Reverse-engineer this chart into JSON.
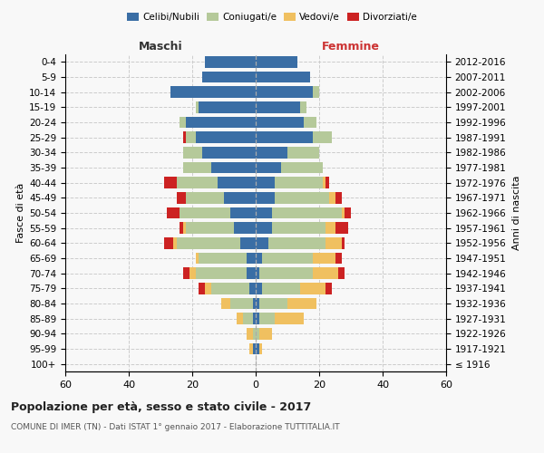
{
  "age_groups": [
    "100+",
    "95-99",
    "90-94",
    "85-89",
    "80-84",
    "75-79",
    "70-74",
    "65-69",
    "60-64",
    "55-59",
    "50-54",
    "45-49",
    "40-44",
    "35-39",
    "30-34",
    "25-29",
    "20-24",
    "15-19",
    "10-14",
    "5-9",
    "0-4"
  ],
  "birth_years": [
    "≤ 1916",
    "1917-1921",
    "1922-1926",
    "1927-1931",
    "1932-1936",
    "1937-1941",
    "1942-1946",
    "1947-1951",
    "1952-1956",
    "1957-1961",
    "1962-1966",
    "1967-1971",
    "1972-1976",
    "1977-1981",
    "1982-1986",
    "1987-1991",
    "1992-1996",
    "1997-2001",
    "2002-2006",
    "2007-2011",
    "2012-2016"
  ],
  "maschi": {
    "celibi": [
      0,
      1,
      0,
      1,
      1,
      2,
      3,
      3,
      5,
      7,
      8,
      10,
      12,
      14,
      17,
      19,
      22,
      18,
      27,
      17,
      16
    ],
    "coniugati": [
      0,
      0,
      1,
      3,
      7,
      12,
      16,
      15,
      20,
      15,
      16,
      12,
      13,
      9,
      6,
      3,
      2,
      1,
      0,
      0,
      0
    ],
    "vedovi": [
      0,
      1,
      2,
      2,
      3,
      2,
      2,
      1,
      1,
      1,
      0,
      0,
      0,
      0,
      0,
      0,
      0,
      0,
      0,
      0,
      0
    ],
    "divorziati": [
      0,
      0,
      0,
      0,
      0,
      2,
      2,
      0,
      3,
      1,
      4,
      3,
      4,
      0,
      0,
      1,
      0,
      0,
      0,
      0,
      0
    ]
  },
  "femmine": {
    "nubili": [
      0,
      1,
      0,
      1,
      1,
      2,
      1,
      2,
      4,
      5,
      5,
      6,
      6,
      8,
      10,
      18,
      15,
      14,
      18,
      17,
      13
    ],
    "coniugate": [
      0,
      0,
      1,
      5,
      9,
      12,
      17,
      16,
      18,
      17,
      22,
      17,
      15,
      13,
      10,
      6,
      4,
      2,
      2,
      0,
      0
    ],
    "vedove": [
      0,
      1,
      4,
      9,
      9,
      8,
      8,
      7,
      5,
      3,
      1,
      2,
      1,
      0,
      0,
      0,
      0,
      0,
      0,
      0,
      0
    ],
    "divorziate": [
      0,
      0,
      0,
      0,
      0,
      2,
      2,
      2,
      1,
      4,
      2,
      2,
      1,
      0,
      0,
      0,
      0,
      0,
      0,
      0,
      0
    ]
  },
  "colors": {
    "celibi": "#3a6ea5",
    "coniugati": "#b5c99a",
    "vedovi": "#f0c060",
    "divorziati": "#cc2222"
  },
  "xlim": 60,
  "title": "Popolazione per età, sesso e stato civile - 2017",
  "subtitle": "COMUNE DI IMER (TN) - Dati ISTAT 1° gennaio 2017 - Elaborazione TUTTITALIA.IT",
  "xlabel_left": "Maschi",
  "xlabel_right": "Femmine",
  "ylabel_left": "Fasce di età",
  "ylabel_right": "Anni di nascita",
  "bg_color": "#f8f8f8",
  "grid_color": "#cccccc"
}
